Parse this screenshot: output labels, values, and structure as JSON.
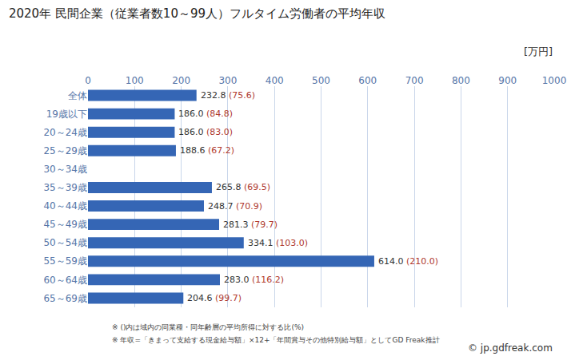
{
  "chart_data": {
    "type": "bar",
    "orientation": "horizontal",
    "title": "2020年 民間企業（従業者数10～99人）フルタイム労働者の平均年収",
    "unit_label": "[万円]",
    "categories": [
      "全体",
      "19歳以下",
      "20～24歳",
      "25～29歳",
      "30～34歳",
      "35～39歳",
      "40～44歳",
      "45～49歳",
      "50～54歳",
      "55～59歳",
      "60～64歳",
      "65～69歳"
    ],
    "values": [
      232.8,
      186.0,
      186.0,
      188.6,
      null,
      265.8,
      248.7,
      281.3,
      334.1,
      614.0,
      283.0,
      204.6
    ],
    "value_labels": [
      "232.8",
      "186.0",
      "186.0",
      "188.6",
      null,
      "265.8",
      "248.7",
      "281.3",
      "334.1",
      "614.0",
      "283.0",
      "204.6"
    ],
    "ratios": [
      75.6,
      84.8,
      83.0,
      67.2,
      null,
      69.5,
      70.9,
      79.7,
      103.0,
      210.0,
      116.2,
      99.7
    ],
    "ratio_labels": [
      "(75.6)",
      "(84.8)",
      "(83.0)",
      "(67.2)",
      null,
      "(69.5)",
      "(70.9)",
      "(79.7)",
      "(103.0)",
      "(210.0)",
      "(116.2)",
      "(99.7)"
    ],
    "ratio_color": "#b0392e",
    "color": "#3566b5",
    "data_labels": true,
    "xlim": [
      0,
      1000
    ],
    "xticks": [
      0,
      100,
      200,
      300,
      400,
      500,
      600,
      700,
      800,
      900,
      1000
    ],
    "grid": true,
    "notes": [
      "※ ()内は域内の同業種・同年齢層の平均所得に対する比(%)",
      "※ 年収=「きまって支給する現金給与額」×12+「年間賞与その他特別給与額」としてGD Freak推計"
    ],
    "credit": "© jp.gdfreak.com"
  }
}
